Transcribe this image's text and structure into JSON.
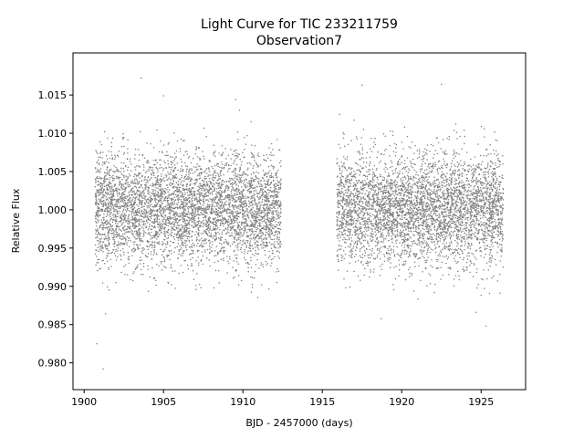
{
  "chart_data": {
    "type": "scatter",
    "title": "Light Curve for TIC 233211759",
    "subtitle": "Observation7",
    "xlabel": "BJD - 2457000 (days)",
    "ylabel": "Relative Flux",
    "xlim": [
      1899.3,
      1927.8
    ],
    "ylim": [
      0.9765,
      1.0205
    ],
    "xticks": [
      1900,
      1905,
      1910,
      1915,
      1920,
      1925
    ],
    "yticks": [
      0.98,
      0.985,
      0.99,
      0.995,
      1.0,
      1.005,
      1.01,
      1.015
    ],
    "xtick_labels": [
      "1900",
      "1905",
      "1910",
      "1915",
      "1920",
      "1925"
    ],
    "ytick_labels": [
      "0.980",
      "0.985",
      "0.990",
      "0.995",
      "1.000",
      "1.005",
      "1.010",
      "1.015"
    ],
    "grid": false,
    "series": [
      {
        "color": "#808080",
        "segments": [
          {
            "x_range": [
              1900.7,
              1912.4
            ],
            "center": 1.0,
            "scatter": 0.0036
          },
          {
            "x_range": [
              1915.9,
              1926.4
            ],
            "center": 1.0,
            "scatter": 0.0036
          }
        ],
        "notable_points": [
          {
            "x": 1903.6,
            "y": 1.0172
          },
          {
            "x": 1901.2,
            "y": 0.9792
          },
          {
            "x": 1900.8,
            "y": 0.9825
          },
          {
            "x": 1922.5,
            "y": 1.0164
          },
          {
            "x": 1917.5,
            "y": 1.0163
          },
          {
            "x": 1905.0,
            "y": 1.0149
          },
          {
            "x": 1925.3,
            "y": 0.9848
          }
        ]
      }
    ]
  }
}
